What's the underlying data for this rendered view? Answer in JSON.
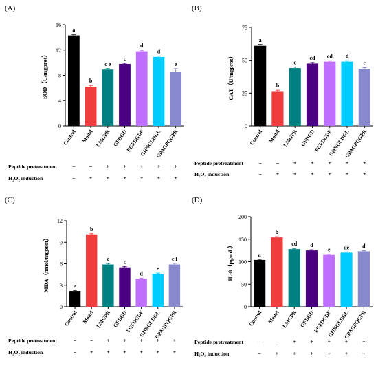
{
  "treatment_rows": [
    {
      "label": "Peptide pretreatment",
      "signs": [
        "−",
        "−",
        "+",
        "+",
        "+",
        "+",
        "+"
      ]
    },
    {
      "label": "H₂O₂ induction",
      "signs": [
        "−",
        "+",
        "+",
        "+",
        "+",
        "+",
        "+"
      ]
    }
  ],
  "chart_data": [
    {
      "type": "bar",
      "panel_label": "(A)",
      "categories": [
        "Control",
        "Model",
        "LMGPR",
        "GFDGD",
        "FGFDGDF",
        "GHNGLDGL",
        "GPAGPQGPR"
      ],
      "values": [
        14.3,
        6.2,
        8.9,
        9.8,
        11.8,
        10.9,
        8.6
      ],
      "errors": [
        0.15,
        0.2,
        0.15,
        0.1,
        0.15,
        0.15,
        0.45
      ],
      "significance": [
        "a",
        "b",
        "c e",
        "c",
        "d",
        "d",
        "e"
      ],
      "colors": [
        "#000000",
        "#f03c3c",
        "#008080",
        "#4b0082",
        "#c070ff",
        "#00ccff",
        "#8888cc"
      ],
      "ylabel": "SOD（U/mgprot）",
      "ylim": [
        0,
        16
      ],
      "yticks": [
        0,
        4,
        8,
        12,
        16
      ]
    },
    {
      "type": "bar",
      "panel_label": "(B)",
      "categories": [
        "Control",
        "Model",
        "LMGPR",
        "GFDGD",
        "FGFDGDF",
        "GHNGLDGL",
        "GPAGPQGPR"
      ],
      "values": [
        61,
        26,
        44,
        47.5,
        49,
        49,
        43.5
      ],
      "errors": [
        1.0,
        1.2,
        0.8,
        0.8,
        0.6,
        0.7,
        0.8
      ],
      "significance": [
        "a",
        "b",
        "c",
        "cd",
        "cd",
        "d",
        "c"
      ],
      "colors": [
        "#000000",
        "#f03c3c",
        "#008080",
        "#4b0082",
        "#c070ff",
        "#00ccff",
        "#8888cc"
      ],
      "ylabel": "CAT（U/mgprot）",
      "ylim": [
        0,
        75
      ],
      "yticks": [
        0,
        25,
        50,
        75
      ]
    },
    {
      "type": "bar",
      "panel_label": "(C)",
      "categories": [
        "Control",
        "Model",
        "LMGPR",
        "GFDGD",
        "FGFDGDF",
        "GHNGLDGL",
        "GPAGPQGPR"
      ],
      "values": [
        2.2,
        10.1,
        5.9,
        5.5,
        3.9,
        4.6,
        5.9
      ],
      "errors": [
        0.1,
        0.1,
        0.15,
        0.1,
        0.1,
        0.1,
        0.15
      ],
      "significance": [
        "a",
        "b",
        "c",
        "c",
        "d",
        "e",
        "c f"
      ],
      "colors": [
        "#000000",
        "#f03c3c",
        "#008080",
        "#4b0082",
        "#c070ff",
        "#00ccff",
        "#8888cc"
      ],
      "ylabel": "MDA（nmol/mgprot）",
      "ylim": [
        0,
        12
      ],
      "yticks": [
        0,
        3,
        6,
        9,
        12
      ]
    },
    {
      "type": "bar",
      "panel_label": "(D)",
      "categories": [
        "Control",
        "Model",
        "LMGPR",
        "GFDGD",
        "FGFDGDF",
        "GHNGLDGL",
        "GPAGPQGPR"
      ],
      "values": [
        104,
        154,
        128,
        125,
        115,
        120,
        123
      ],
      "errors": [
        1.5,
        1.5,
        1.5,
        1.5,
        1.5,
        1.5,
        1.5
      ],
      "significance": [
        "a",
        "b",
        "cd",
        "d",
        "e",
        "de",
        "d"
      ],
      "colors": [
        "#000000",
        "#f03c3c",
        "#008080",
        "#4b0082",
        "#c070ff",
        "#00ccff",
        "#8888cc"
      ],
      "ylabel": "IL-8（pg/mL）",
      "ylim": [
        0,
        200
      ],
      "yticks": [
        0,
        50,
        100,
        150,
        200
      ]
    }
  ]
}
